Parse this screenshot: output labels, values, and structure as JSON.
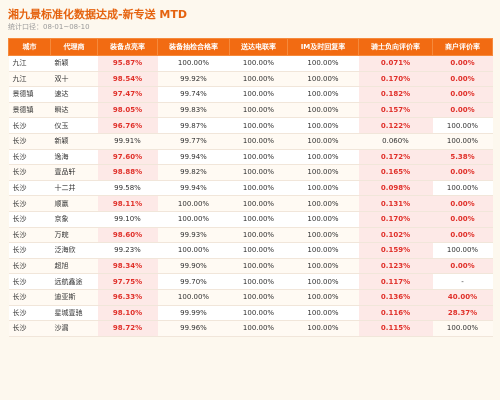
{
  "header": {
    "title": "湘九景标准化数据达成-新专送 MTD",
    "subtitle": "统计口径：08-01~08-10"
  },
  "table": {
    "columns": [
      "城市",
      "代理商",
      "装备点亮率",
      "装备抽检合格率",
      "送达电联率",
      "IM及时回复率",
      "骑士负向评价率",
      "商户评价率"
    ],
    "rows": [
      [
        "九江",
        "新颖",
        {
          "text": "95.87%",
          "alert": true
        },
        "100.00%",
        "100.00%",
        "100.00%",
        {
          "text": "0.071%",
          "alert": true
        },
        {
          "text": "0.00%",
          "alert": true
        }
      ],
      [
        "九江",
        "双十",
        {
          "text": "98.54%",
          "alert": true
        },
        "99.92%",
        "100.00%",
        "100.00%",
        {
          "text": "0.170%",
          "alert": true
        },
        {
          "text": "0.00%",
          "alert": true
        }
      ],
      [
        "景德镇",
        "速达",
        {
          "text": "97.47%",
          "alert": true
        },
        "99.74%",
        "100.00%",
        "100.00%",
        {
          "text": "0.182%",
          "alert": true
        },
        {
          "text": "0.00%",
          "alert": true
        }
      ],
      [
        "景德镇",
        "瞬达",
        {
          "text": "98.05%",
          "alert": true
        },
        "99.83%",
        "100.00%",
        "100.00%",
        {
          "text": "0.157%",
          "alert": true
        },
        {
          "text": "0.00%",
          "alert": true
        }
      ],
      [
        "长沙",
        "仪玉",
        {
          "text": "96.76%",
          "alert": true
        },
        "99.87%",
        "100.00%",
        "100.00%",
        {
          "text": "0.122%",
          "alert": true
        },
        "100.00%"
      ],
      [
        "长沙",
        "新颖",
        "99.91%",
        "99.77%",
        "100.00%",
        "100.00%",
        "0.060%",
        "100.00%"
      ],
      [
        "长沙",
        "逸海",
        {
          "text": "97.60%",
          "alert": true
        },
        "99.94%",
        "100.00%",
        "100.00%",
        {
          "text": "0.172%",
          "alert": true
        },
        {
          "text": "5.38%",
          "alert": true
        }
      ],
      [
        "长沙",
        "壹品轩",
        {
          "text": "98.88%",
          "alert": true
        },
        "99.82%",
        "100.00%",
        "100.00%",
        {
          "text": "0.165%",
          "alert": true
        },
        {
          "text": "0.00%",
          "alert": true
        }
      ],
      [
        "长沙",
        "十二井",
        "99.58%",
        "99.94%",
        "100.00%",
        "100.00%",
        {
          "text": "0.098%",
          "alert": true
        },
        "100.00%"
      ],
      [
        "长沙",
        "顺赢",
        {
          "text": "98.11%",
          "alert": true
        },
        "100.00%",
        "100.00%",
        "100.00%",
        {
          "text": "0.131%",
          "alert": true
        },
        {
          "text": "0.00%",
          "alert": true
        }
      ],
      [
        "长沙",
        "京象",
        "99.10%",
        "100.00%",
        "100.00%",
        "100.00%",
        {
          "text": "0.170%",
          "alert": true
        },
        {
          "text": "0.00%",
          "alert": true
        }
      ],
      [
        "长沙",
        "万皖",
        {
          "text": "98.60%",
          "alert": true
        },
        "99.93%",
        "100.00%",
        "100.00%",
        {
          "text": "0.102%",
          "alert": true
        },
        {
          "text": "0.00%",
          "alert": true
        }
      ],
      [
        "长沙",
        "泛海欣",
        "99.23%",
        "100.00%",
        "100.00%",
        "100.00%",
        {
          "text": "0.159%",
          "alert": true
        },
        "100.00%"
      ],
      [
        "长沙",
        "超旭",
        {
          "text": "98.34%",
          "alert": true
        },
        "99.90%",
        "100.00%",
        "100.00%",
        {
          "text": "0.123%",
          "alert": true
        },
        {
          "text": "0.00%",
          "alert": true
        }
      ],
      [
        "长沙",
        "远航鑫途",
        {
          "text": "97.75%",
          "alert": true
        },
        "99.70%",
        "100.00%",
        "100.00%",
        {
          "text": "0.117%",
          "alert": true
        },
        "-"
      ],
      [
        "长沙",
        "迪亚斯",
        {
          "text": "96.33%",
          "alert": true
        },
        "100.00%",
        "100.00%",
        "100.00%",
        {
          "text": "0.136%",
          "alert": true
        },
        {
          "text": "40.00%",
          "alert": true
        }
      ],
      [
        "长沙",
        "星城壹驰",
        {
          "text": "98.10%",
          "alert": true
        },
        "99.99%",
        "100.00%",
        "100.00%",
        {
          "text": "0.116%",
          "alert": true
        },
        {
          "text": "28.37%",
          "alert": true
        }
      ],
      [
        "长沙",
        "沙漏",
        {
          "text": "98.72%",
          "alert": true
        },
        "99.96%",
        "100.00%",
        "100.00%",
        {
          "text": "0.115%",
          "alert": true
        },
        "100.00%"
      ]
    ]
  }
}
